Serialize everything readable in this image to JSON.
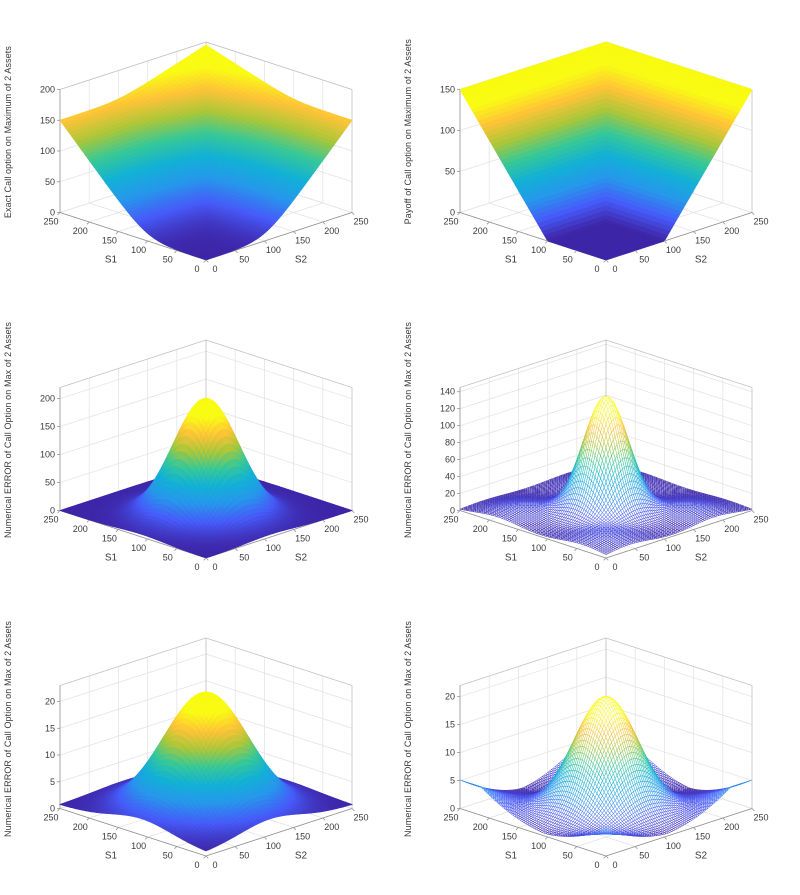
{
  "figure": {
    "background": "#ffffff",
    "grid_layout": "2 columns x 3 rows",
    "view": {
      "azimuth": -37.5,
      "elevation": 30
    }
  },
  "colormap": {
    "name": "parula",
    "stops": [
      "#3e26a8",
      "#475bf9",
      "#2797eb",
      "#12b1d6",
      "#37c897",
      "#abc739",
      "#fec338",
      "#f9fb15",
      "#f9fb0e"
    ]
  },
  "chart_data": [
    {
      "type": "surface3d",
      "plot_style": "surf",
      "zlabel": "Exact Call option on Maximum of 2 Assets",
      "xlabel": "S1",
      "ylabel": "S2",
      "xlim": [
        0,
        250
      ],
      "ylim": [
        0,
        250
      ],
      "zlim": [
        0,
        200
      ],
      "x_ticks": [
        0,
        50,
        100,
        150,
        200,
        250
      ],
      "y_ticks": [
        0,
        50,
        100,
        150,
        200,
        250
      ],
      "z_ticks": [
        0,
        50,
        100,
        150,
        200
      ],
      "model": {
        "type": "call_on_max_exact",
        "strike": 100,
        "smooth": 18,
        "bonus": 0.3,
        "grid_n": 64
      },
      "sample_x": [
        0,
        50,
        100,
        150,
        200,
        250
      ],
      "sample_y": [
        0,
        50,
        100,
        150,
        200,
        250
      ],
      "sample_z": [
        [
          0,
          1.1,
          12.5,
          51.1,
          100.1,
          150.0
        ],
        [
          1.1,
          1.4,
          12.8,
          51.4,
          100.4,
          150.3
        ],
        [
          12.5,
          12.8,
          16.2,
          54.9,
          103.9,
          153.7
        ],
        [
          51.1,
          51.4,
          54.9,
          66.4,
          115.4,
          165.4
        ],
        [
          100.1,
          100.4,
          103.9,
          115.4,
          130.1,
          180.1
        ],
        [
          150.0,
          150.3,
          153.7,
          165.4,
          180.1,
          195.0
        ]
      ]
    },
    {
      "type": "surface3d",
      "plot_style": "surf",
      "zlabel": "Payoff of Call option on Maximum of 2 Assets",
      "xlabel": "S1",
      "ylabel": "S2",
      "xlim": [
        0,
        250
      ],
      "ylim": [
        0,
        250
      ],
      "zlim": [
        0,
        150
      ],
      "x_ticks": [
        0,
        50,
        100,
        150,
        200,
        250
      ],
      "y_ticks": [
        0,
        50,
        100,
        150,
        200,
        250
      ],
      "z_ticks": [
        0,
        50,
        100,
        150
      ],
      "model": {
        "type": "call_on_max_payoff",
        "strike": 100,
        "grid_n": 64
      },
      "sample_x": [
        0,
        50,
        100,
        150,
        200,
        250
      ],
      "sample_y": [
        0,
        50,
        100,
        150,
        200,
        250
      ],
      "sample_z": [
        [
          0,
          0,
          0,
          50,
          100,
          150
        ],
        [
          0,
          0,
          0,
          50,
          100,
          150
        ],
        [
          0,
          0,
          0,
          50,
          100,
          150
        ],
        [
          50,
          50,
          50,
          50,
          100,
          150
        ],
        [
          100,
          100,
          100,
          100,
          100,
          150
        ],
        [
          150,
          150,
          150,
          150,
          150,
          150
        ]
      ]
    },
    {
      "type": "surface3d",
      "plot_style": "surf",
      "zlabel": "Numerical ERROR of Call Option on Max of 2 Assets",
      "xlabel": "S1",
      "ylabel": "S2",
      "xlim": [
        0,
        250
      ],
      "ylim": [
        0,
        250
      ],
      "zlim": [
        0,
        220
      ],
      "x_ticks": [
        0,
        50,
        100,
        150,
        200,
        250
      ],
      "y_ticks": [
        0,
        50,
        100,
        150,
        200,
        250
      ],
      "z_ticks": [
        0,
        50,
        100,
        150,
        200
      ],
      "model": {
        "type": "gaussian_peak",
        "peak": 210,
        "sigma": 40,
        "center": [
          110,
          110
        ],
        "base": 0,
        "grid_n": 64
      },
      "sample_x": [
        0,
        50,
        100,
        150,
        200,
        250
      ],
      "sample_y": [
        0,
        50,
        100,
        150,
        200,
        250
      ],
      "sample_z": [
        [
          0.1,
          1.6,
          4.6,
          2.9,
          0.4,
          0.0
        ],
        [
          1.6,
          22.2,
          66.1,
          41.4,
          5.4,
          0.1
        ],
        [
          4.6,
          66.1,
          197.2,
          123.5,
          16.2,
          0.4
        ],
        [
          2.9,
          41.4,
          123.5,
          77.3,
          10.1,
          0.3
        ],
        [
          0.4,
          5.4,
          16.2,
          10.1,
          1.3,
          0.0
        ],
        [
          0.0,
          0.1,
          0.4,
          0.3,
          0.0,
          0.0
        ]
      ]
    },
    {
      "type": "surface3d",
      "plot_style": "mesh",
      "zlabel": "Numerical ERROR of Call Option on Max of 2 Assets",
      "xlabel": "S1",
      "ylabel": "S2",
      "xlim": [
        0,
        250
      ],
      "ylim": [
        0,
        250
      ],
      "zlim": [
        0,
        145
      ],
      "x_ticks": [
        0,
        50,
        100,
        150,
        200,
        250
      ],
      "y_ticks": [
        0,
        50,
        100,
        150,
        200,
        250
      ],
      "z_ticks": [
        0,
        20,
        40,
        60,
        80,
        100,
        120,
        140
      ],
      "model": {
        "type": "gaussian_peak_with_mounds",
        "peak": 140,
        "sigma": 28,
        "center": [
          110,
          110
        ],
        "mound_height": 12,
        "mound_sigma": 38,
        "mound_centers": [
          40,
          185
        ],
        "grid_n": 80
      },
      "sample_x": [
        0,
        50,
        100,
        150,
        200,
        250
      ],
      "sample_y": [
        0,
        50,
        100,
        150,
        200,
        250
      ],
      "sample_z": [
        [
          4.0,
          6.7,
          2.6,
          4.6,
          6.4,
          1.6
        ],
        [
          6.7,
          12.7,
          17.5,
          12.8,
          10.8,
          2.7
        ],
        [
          2.6,
          17.5,
          124.8,
          50.3,
          4.8,
          1.0
        ],
        [
          4.6,
          12.8,
          50.3,
          23.5,
          7.7,
          1.9
        ],
        [
          6.4,
          10.8,
          4.8,
          7.7,
          10.3,
          2.6
        ],
        [
          1.6,
          2.7,
          1.0,
          1.9,
          2.6,
          0.6
        ]
      ]
    },
    {
      "type": "surface3d",
      "plot_style": "surf",
      "zlabel": "Numerical ERROR of Call Option on Max of 2 Assets",
      "xlabel": "S1",
      "ylabel": "S2",
      "xlim": [
        0,
        250
      ],
      "ylim": [
        0,
        250
      ],
      "zlim": [
        0,
        23
      ],
      "x_ticks": [
        0,
        50,
        100,
        150,
        200,
        250
      ],
      "y_ticks": [
        0,
        50,
        100,
        150,
        200,
        250
      ],
      "z_ticks": [
        0,
        5,
        10,
        15,
        20
      ],
      "model": {
        "type": "gaussian_peak",
        "peak": 22,
        "sigma": 52,
        "center": [
          110,
          110
        ],
        "base": 0.7,
        "grid_n": 64
      },
      "sample_x": [
        0,
        50,
        100,
        150,
        200,
        250
      ],
      "sample_y": [
        0,
        50,
        100,
        150,
        200,
        250
      ],
      "sample_z": [
        [
          0.95,
          1.91,
          3.01,
          2.45,
          1.23,
          0.76
        ],
        [
          1.91,
          6.51,
          11.81,
          9.11,
          3.23,
          1.0
        ],
        [
          3.01,
          11.81,
          21.92,
          16.77,
          5.53,
          1.27
        ],
        [
          2.45,
          9.11,
          16.77,
          12.88,
          4.36,
          1.14
        ],
        [
          1.23,
          3.23,
          5.53,
          4.36,
          1.8,
          0.83
        ],
        [
          0.76,
          1.0,
          1.27,
          1.14,
          0.83,
          0.72
        ]
      ]
    },
    {
      "type": "surface3d",
      "plot_style": "mesh",
      "zlabel": "Numerical ERROR of Call Option on Max of 2 Assets",
      "xlabel": "S1",
      "ylabel": "S2",
      "xlim": [
        0,
        250
      ],
      "ylim": [
        0,
        250
      ],
      "zlim": [
        0,
        22
      ],
      "x_ticks": [
        0,
        50,
        100,
        150,
        200,
        250
      ],
      "y_ticks": [
        0,
        50,
        100,
        150,
        200,
        250
      ],
      "z_ticks": [
        0,
        5,
        10,
        15,
        20
      ],
      "model": {
        "type": "gaussian_peak_with_rim",
        "peak": 21,
        "sigma": 40,
        "center": [
          110,
          110
        ],
        "rim_height": 5.5,
        "rim_cross": 105,
        "rim_scale": 110,
        "rim_pow": 1.6,
        "grid_n": 80
      },
      "sample_x": [
        0,
        50,
        100,
        150,
        200,
        250
      ],
      "sample_y": [
        0,
        50,
        100,
        150,
        200,
        250
      ],
      "sample_z": [
        [
          4.8,
          1.8,
          0.5,
          1.5,
          4.1,
          5.1
        ],
        [
          1.8,
          2.8,
          6.6,
          4.6,
          2.0,
          1.8
        ],
        [
          0.5,
          6.6,
          19.8,
          12.4,
          1.7,
          0.1
        ],
        [
          1.5,
          4.6,
          12.4,
          8.1,
          2.1,
          1.3
        ],
        [
          4.1,
          2.0,
          1.7,
          2.1,
          3.6,
          4.3
        ],
        [
          5.1,
          1.8,
          0.1,
          1.3,
          4.3,
          5.5
        ]
      ]
    }
  ]
}
